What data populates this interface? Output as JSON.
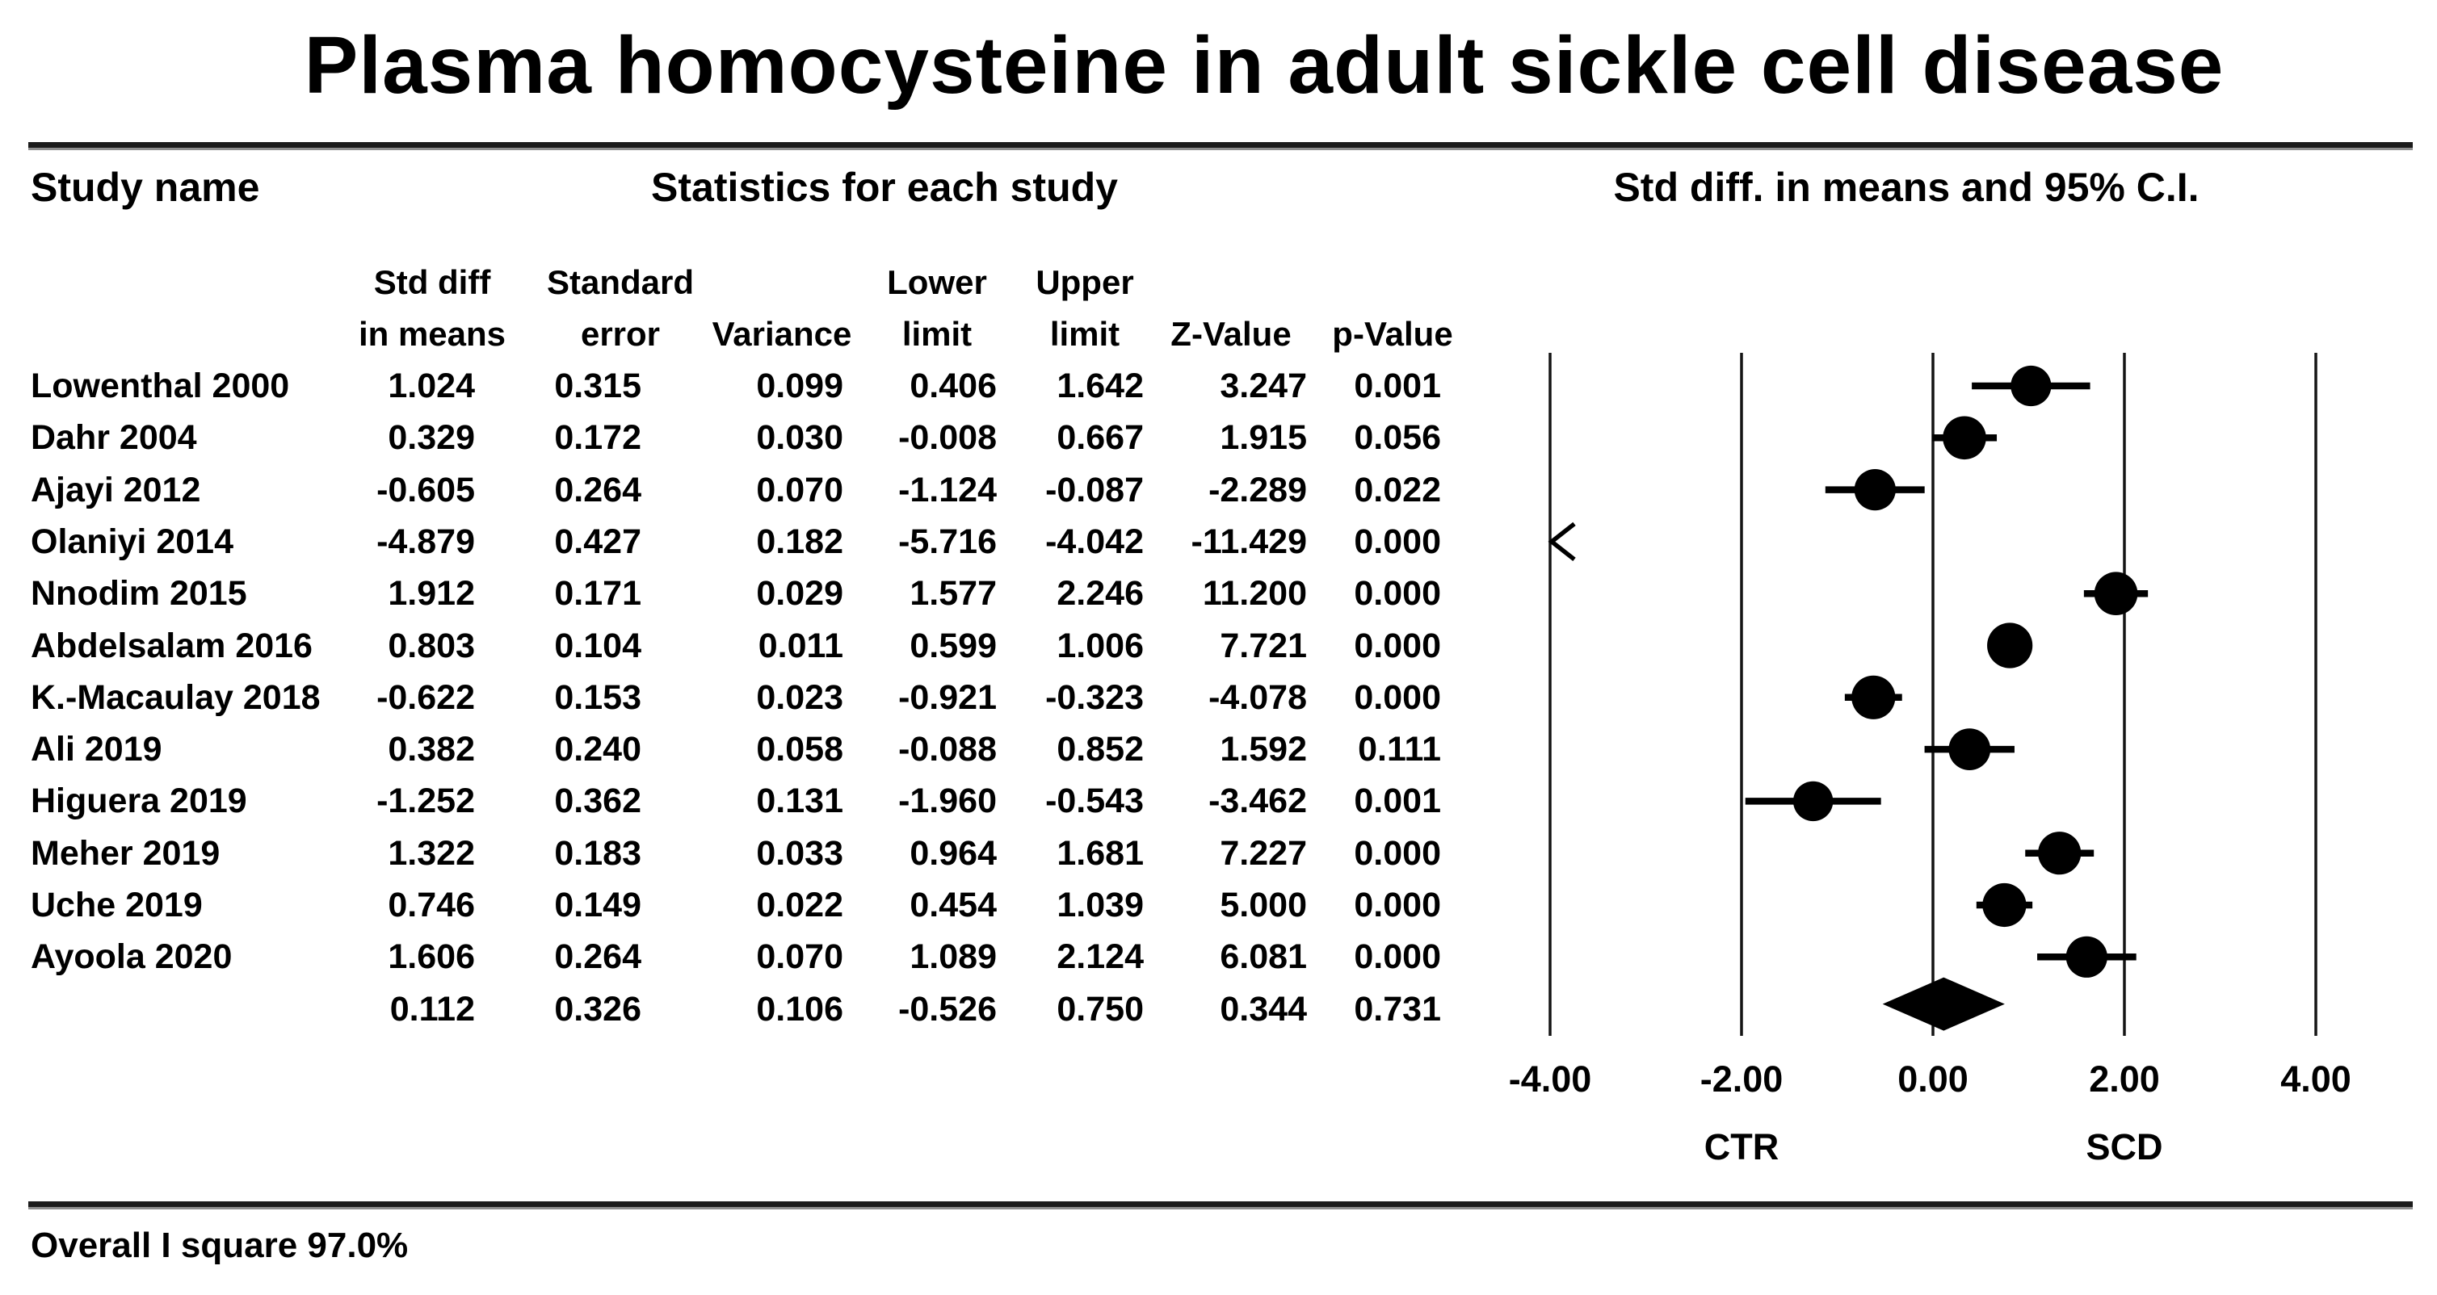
{
  "title": "Plasma homocysteine in adult sickle cell disease",
  "table": {
    "section_headers": {
      "study": "Study name",
      "stats": "Statistics for each study",
      "plot": "Std diff. in means and 95% C.I."
    },
    "sub_headers_line1": [
      "Std diff",
      "Standard",
      "Lower",
      "Upper"
    ],
    "sub_headers_line2": [
      "in means",
      "error",
      "Variance",
      "limit",
      "limit",
      "Z-Value",
      "p-Value"
    ]
  },
  "chart_data": {
    "type": "forest",
    "title": "Plasma homocysteine in adult sickle cell disease",
    "effect_label": "Std diff. in means and 95% C.I.",
    "xlim": [
      -4,
      4
    ],
    "ticks": [
      -4,
      -2,
      0,
      2,
      4
    ],
    "tick_labels": [
      "-4.00",
      "-2.00",
      "0.00",
      "2.00",
      "4.00"
    ],
    "group_labels": {
      "left": "CTR",
      "right": "SCD"
    },
    "grid": true,
    "studies": [
      {
        "name": "Lowenthal 2000",
        "std_diff": "1.024",
        "se": "0.315",
        "variance": "0.099",
        "lower": "0.406",
        "upper": "1.642",
        "z": "3.247",
        "p": "0.001"
      },
      {
        "name": "Dahr 2004",
        "std_diff": "0.329",
        "se": "0.172",
        "variance": "0.030",
        "lower": "-0.008",
        "upper": "0.667",
        "z": "1.915",
        "p": "0.056"
      },
      {
        "name": "Ajayi 2012",
        "std_diff": "-0.605",
        "se": "0.264",
        "variance": "0.070",
        "lower": "-1.124",
        "upper": "-0.087",
        "z": "-2.289",
        "p": "0.022"
      },
      {
        "name": "Olaniyi 2014",
        "std_diff": "-4.879",
        "se": "0.427",
        "variance": "0.182",
        "lower": "-5.716",
        "upper": "-4.042",
        "z": "-11.429",
        "p": "0.000"
      },
      {
        "name": "Nnodim 2015",
        "std_diff": "1.912",
        "se": "0.171",
        "variance": "0.029",
        "lower": "1.577",
        "upper": "2.246",
        "z": "11.200",
        "p": "0.000"
      },
      {
        "name": "Abdelsalam 2016",
        "std_diff": "0.803",
        "se": "0.104",
        "variance": "0.011",
        "lower": "0.599",
        "upper": "1.006",
        "z": "7.721",
        "p": "0.000"
      },
      {
        "name": "K.-Macaulay 2018",
        "std_diff": "-0.622",
        "se": "0.153",
        "variance": "0.023",
        "lower": "-0.921",
        "upper": "-0.323",
        "z": "-4.078",
        "p": "0.000"
      },
      {
        "name": "Ali 2019",
        "std_diff": "0.382",
        "se": "0.240",
        "variance": "0.058",
        "lower": "-0.088",
        "upper": "0.852",
        "z": "1.592",
        "p": "0.111"
      },
      {
        "name": "Higuera 2019",
        "std_diff": "-1.252",
        "se": "0.362",
        "variance": "0.131",
        "lower": "-1.960",
        "upper": "-0.543",
        "z": "-3.462",
        "p": "0.001"
      },
      {
        "name": "Meher 2019",
        "std_diff": "1.322",
        "se": "0.183",
        "variance": "0.033",
        "lower": "0.964",
        "upper": "1.681",
        "z": "7.227",
        "p": "0.000"
      },
      {
        "name": "Uche 2019",
        "std_diff": "0.746",
        "se": "0.149",
        "variance": "0.022",
        "lower": "0.454",
        "upper": "1.039",
        "z": "5.000",
        "p": "0.000"
      },
      {
        "name": "Ayoola 2020",
        "std_diff": "1.606",
        "se": "0.264",
        "variance": "0.070",
        "lower": "1.089",
        "upper": "2.124",
        "z": "6.081",
        "p": "0.000"
      }
    ],
    "summary": {
      "name": "",
      "std_diff": "0.112",
      "se": "0.326",
      "variance": "0.106",
      "lower": "-0.526",
      "upper": "0.750",
      "z": "0.344",
      "p": "0.731"
    }
  },
  "footer": {
    "text": "Overall I square 97.0%"
  }
}
